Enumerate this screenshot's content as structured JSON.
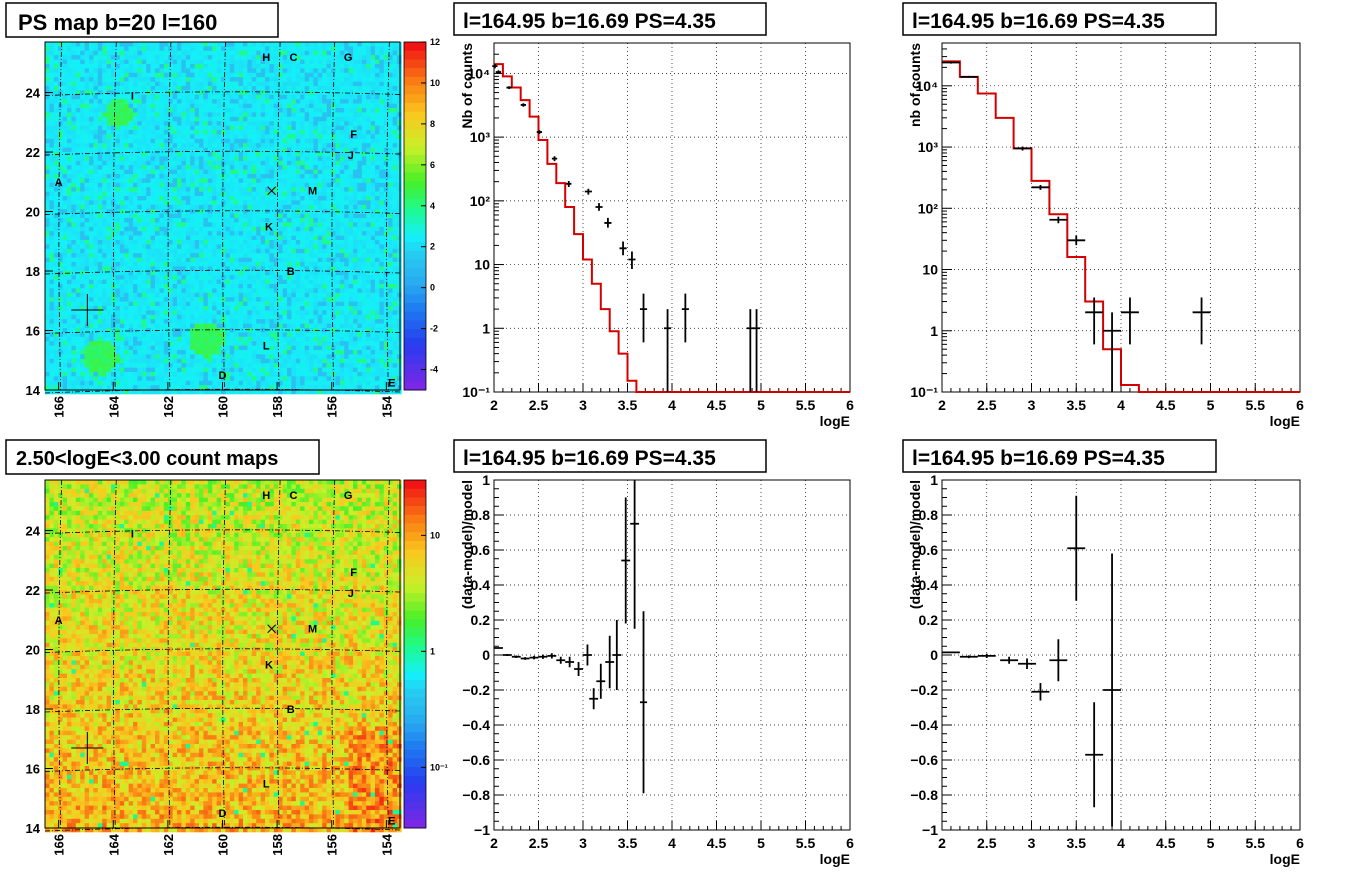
{
  "colors": {
    "hist": "#d40000",
    "points": "#000000",
    "grid": "#000000",
    "axis": "#000000"
  },
  "chart_data": [
    {
      "id": "ps-map",
      "type": "heatmap",
      "title": "PS map b=20 l=160",
      "x_ticks": [
        "166",
        "164",
        "162",
        "160",
        "158",
        "156",
        "154"
      ],
      "y_ticks": [
        "14",
        "16",
        "18",
        "20",
        "22",
        "24"
      ],
      "xlim": [
        166.5,
        153.5
      ],
      "ylim": [
        14,
        25.7
      ],
      "colorbar": {
        "scale": "linear",
        "ticks": [
          "12",
          "10",
          "8",
          "6",
          "4",
          "2",
          "0",
          "-2",
          "-4"
        ],
        "range": [
          -5,
          12
        ]
      },
      "sources": [
        {
          "label": "H",
          "l": 158.4,
          "b": 25.2
        },
        {
          "label": "C",
          "l": 157.4,
          "b": 25.2
        },
        {
          "label": "G",
          "l": 155.4,
          "b": 25.2
        },
        {
          "label": "I",
          "l": 163.3,
          "b": 23.9
        },
        {
          "label": "F",
          "l": 155.2,
          "b": 22.6
        },
        {
          "label": "J",
          "l": 155.3,
          "b": 21.9
        },
        {
          "label": "A",
          "l": 166.0,
          "b": 21.0
        },
        {
          "label": "M",
          "l": 156.7,
          "b": 20.7
        },
        {
          "label": "K",
          "l": 158.3,
          "b": 19.5
        },
        {
          "label": "B",
          "l": 157.5,
          "b": 18.0
        },
        {
          "label": "L",
          "l": 158.4,
          "b": 15.5
        },
        {
          "label": "D",
          "l": 160.0,
          "b": 14.5
        },
        {
          "label": "E",
          "l": 153.8,
          "b": 14.25
        }
      ],
      "markers": [
        {
          "symbol": "x",
          "l": 158.2,
          "b": 20.7
        },
        {
          "symbol": "+",
          "l": 164.95,
          "b": 16.69
        }
      ]
    },
    {
      "id": "count-map",
      "type": "heatmap",
      "title": "2.50<logE<3.00 count maps",
      "x_ticks": [
        "166",
        "164",
        "162",
        "160",
        "158",
        "156",
        "154"
      ],
      "y_ticks": [
        "14",
        "16",
        "18",
        "20",
        "22",
        "24"
      ],
      "xlim": [
        166.5,
        153.5
      ],
      "ylim": [
        14,
        25.7
      ],
      "colorbar": {
        "scale": "log",
        "ticks": [
          "10",
          "1",
          "10⁻¹"
        ],
        "range": [
          0.03,
          30
        ]
      },
      "sources_same_as": "ps-map"
    },
    {
      "id": "spectrum-1",
      "type": "line",
      "title": "l=164.95 b=16.69 PS=4.35",
      "xlabel": "logE",
      "ylabel": "Nb of counts",
      "y_scale": "log",
      "xlim": [
        2,
        6
      ],
      "ylim": [
        0.1,
        30000
      ],
      "x_ticks": [
        "2",
        "2.5",
        "3",
        "3.5",
        "4",
        "4.5",
        "5",
        "5.5",
        "6"
      ],
      "y_ticks": [
        {
          "v": 0.1,
          "label": "10⁻¹"
        },
        {
          "v": 1,
          "label": "1"
        },
        {
          "v": 10,
          "label": "10"
        },
        {
          "v": 100,
          "label": "10²"
        },
        {
          "v": 1000,
          "label": "10³"
        },
        {
          "v": 10000,
          "label": "10⁴"
        }
      ],
      "grid": true,
      "model_step": {
        "edges": [
          2.0,
          2.1,
          2.2,
          2.3,
          2.4,
          2.5,
          2.6,
          2.7,
          2.8,
          2.9,
          3.0,
          3.1,
          3.2,
          3.3,
          3.4,
          3.5,
          3.6,
          3.7,
          3.8,
          3.9,
          4.0,
          4.1,
          4.2,
          4.3
        ],
        "values": [
          14000,
          9000,
          6000,
          3800,
          2100,
          900,
          380,
          190,
          80,
          30,
          12,
          5,
          2,
          0.9,
          0.4,
          0.15,
          0.08,
          0.05,
          0.035,
          0.03,
          0.03,
          0.03,
          0.03
        ]
      },
      "data_points": [
        {
          "x": 2.01,
          "y": 13000,
          "dx": 0.03,
          "lo": 12000,
          "hi": 14000
        },
        {
          "x": 2.05,
          "y": 10500,
          "dx": 0.03,
          "lo": 9800,
          "hi": 11200
        },
        {
          "x": 2.17,
          "y": 6000,
          "dx": 0.03,
          "lo": 5700,
          "hi": 6300
        },
        {
          "x": 2.33,
          "y": 3200,
          "dx": 0.03,
          "lo": 3000,
          "hi": 3400
        },
        {
          "x": 2.51,
          "y": 1200,
          "dx": 0.03,
          "lo": 1120,
          "hi": 1280
        },
        {
          "x": 2.68,
          "y": 460,
          "dx": 0.03,
          "lo": 420,
          "hi": 500
        },
        {
          "x": 2.84,
          "y": 185,
          "dx": 0.03,
          "lo": 165,
          "hi": 205
        },
        {
          "x": 3.06,
          "y": 140,
          "dx": 0.04,
          "lo": 125,
          "hi": 155
        },
        {
          "x": 3.18,
          "y": 80,
          "dx": 0.04,
          "lo": 70,
          "hi": 92
        },
        {
          "x": 3.28,
          "y": 45,
          "dx": 0.04,
          "lo": 38,
          "hi": 54
        },
        {
          "x": 3.45,
          "y": 18,
          "dx": 0.04,
          "lo": 14,
          "hi": 23
        },
        {
          "x": 3.55,
          "y": 12,
          "dx": 0.04,
          "lo": 8.5,
          "hi": 16
        },
        {
          "x": 3.68,
          "y": 2,
          "dx": 0.04,
          "lo": 0.6,
          "hi": 3.5
        },
        {
          "x": 3.95,
          "y": 1,
          "dx": 0.04,
          "lo": 0.1,
          "hi": 2
        },
        {
          "x": 4.15,
          "y": 2,
          "dx": 0.04,
          "lo": 0.6,
          "hi": 3.5
        },
        {
          "x": 4.88,
          "y": 1,
          "dx": 0.04,
          "lo": 0.1,
          "hi": 2
        },
        {
          "x": 4.95,
          "y": 1,
          "dx": 0.04,
          "lo": 0.1,
          "hi": 2
        }
      ]
    },
    {
      "id": "spectrum-2",
      "type": "line",
      "title": "l=164.95 b=16.69 PS=4.35",
      "xlabel": "logE",
      "ylabel": "nb of counts",
      "y_scale": "log",
      "xlim": [
        2,
        6
      ],
      "ylim": [
        0.1,
        50000
      ],
      "x_ticks": [
        "2",
        "2.5",
        "3",
        "3.5",
        "4",
        "4.5",
        "5",
        "5.5",
        "6"
      ],
      "y_ticks": [
        {
          "v": 0.1,
          "label": "10⁻¹"
        },
        {
          "v": 1,
          "label": "1"
        },
        {
          "v": 10,
          "label": "10"
        },
        {
          "v": 100,
          "label": "10²"
        },
        {
          "v": 1000,
          "label": "10³"
        },
        {
          "v": 10000,
          "label": "10⁴"
        }
      ],
      "grid": true,
      "model_step": {
        "edges": [
          2.0,
          2.2,
          2.4,
          2.6,
          2.8,
          3.0,
          3.2,
          3.4,
          3.6,
          3.8,
          4.0,
          4.2,
          4.4,
          4.6
        ],
        "values": [
          25000,
          14000,
          7500,
          3000,
          950,
          280,
          80,
          16,
          3,
          0.5,
          0.13,
          0.1,
          0.1
        ]
      },
      "data_points": [
        {
          "x": 2.1,
          "y": 24000,
          "dx": 0.1,
          "lo": 23000,
          "hi": 25000
        },
        {
          "x": 2.3,
          "y": 14000,
          "dx": 0.1,
          "lo": 13500,
          "hi": 14500
        },
        {
          "x": 2.9,
          "y": 950,
          "dx": 0.1,
          "lo": 880,
          "hi": 1020
        },
        {
          "x": 3.1,
          "y": 220,
          "dx": 0.1,
          "lo": 200,
          "hi": 240
        },
        {
          "x": 3.3,
          "y": 65,
          "dx": 0.1,
          "lo": 57,
          "hi": 73
        },
        {
          "x": 3.5,
          "y": 30,
          "dx": 0.1,
          "lo": 25,
          "hi": 36
        },
        {
          "x": 3.7,
          "y": 2,
          "dx": 0.1,
          "lo": 0.6,
          "hi": 3.5
        },
        {
          "x": 3.9,
          "y": 1,
          "dx": 0.1,
          "lo": 0.1,
          "hi": 2
        },
        {
          "x": 4.1,
          "y": 2,
          "dx": 0.1,
          "lo": 0.6,
          "hi": 3.5
        },
        {
          "x": 4.9,
          "y": 2,
          "dx": 0.1,
          "lo": 0.6,
          "hi": 3.5
        }
      ]
    },
    {
      "id": "residual-1",
      "type": "scatter",
      "title": "l=164.95 b=16.69 PS=4.35",
      "xlabel": "logE",
      "ylabel": "(data-model)/model",
      "xlim": [
        2,
        6
      ],
      "ylim": [
        -1,
        1
      ],
      "x_ticks": [
        "2",
        "2.5",
        "3",
        "3.5",
        "4",
        "4.5",
        "5",
        "5.5",
        "6"
      ],
      "y_ticks": [
        "-1",
        "-0.8",
        "-0.6",
        "-0.4",
        "-0.2",
        "0",
        "0.2",
        "0.4",
        "0.6",
        "0.8",
        "1"
      ],
      "grid": true,
      "data_points": [
        {
          "x": 2.05,
          "y": 0.04,
          "dx": 0.05,
          "err": 0.005
        },
        {
          "x": 2.15,
          "y": 0.0,
          "dx": 0.05,
          "err": 0.006
        },
        {
          "x": 2.25,
          "y": -0.01,
          "dx": 0.05,
          "err": 0.007
        },
        {
          "x": 2.35,
          "y": -0.02,
          "dx": 0.05,
          "err": 0.008
        },
        {
          "x": 2.45,
          "y": -0.015,
          "dx": 0.05,
          "err": 0.01
        },
        {
          "x": 2.55,
          "y": -0.01,
          "dx": 0.05,
          "err": 0.012
        },
        {
          "x": 2.65,
          "y": -0.005,
          "dx": 0.05,
          "err": 0.015
        },
        {
          "x": 2.75,
          "y": -0.03,
          "dx": 0.05,
          "err": 0.02
        },
        {
          "x": 2.85,
          "y": -0.04,
          "dx": 0.05,
          "err": 0.03
        },
        {
          "x": 2.95,
          "y": -0.08,
          "dx": 0.05,
          "err": 0.04
        },
        {
          "x": 3.05,
          "y": 0.0,
          "dx": 0.05,
          "err": 0.06
        },
        {
          "x": 3.12,
          "y": -0.25,
          "dx": 0.05,
          "err": 0.06
        },
        {
          "x": 3.2,
          "y": -0.15,
          "dx": 0.05,
          "err": 0.1
        },
        {
          "x": 3.3,
          "y": -0.04,
          "dx": 0.05,
          "err": 0.15
        },
        {
          "x": 3.38,
          "y": 0.0,
          "dx": 0.05,
          "err": 0.2
        },
        {
          "x": 3.48,
          "y": 0.54,
          "dx": 0.05,
          "err": 0.36
        },
        {
          "x": 3.58,
          "y": 0.75,
          "dx": 0.05,
          "err": 0.6
        },
        {
          "x": 3.68,
          "y": -0.27,
          "dx": 0.04,
          "err": 0.52
        }
      ]
    },
    {
      "id": "residual-2",
      "type": "scatter",
      "title": "l=164.95 b=16.69 PS=4.35",
      "xlabel": "logE",
      "ylabel": "(data-model)/model",
      "xlim": [
        2,
        6
      ],
      "ylim": [
        -1,
        1
      ],
      "x_ticks": [
        "2",
        "2.5",
        "3",
        "3.5",
        "4",
        "4.5",
        "5",
        "5.5",
        "6"
      ],
      "y_ticks": [
        "-1",
        "-0.8",
        "-0.6",
        "-0.4",
        "-0.2",
        "0",
        "0.2",
        "0.4",
        "0.6",
        "0.8",
        "1"
      ],
      "grid": true,
      "data_points": [
        {
          "x": 2.1,
          "y": 0.015,
          "dx": 0.1,
          "err": 0.005
        },
        {
          "x": 2.3,
          "y": -0.01,
          "dx": 0.1,
          "err": 0.008
        },
        {
          "x": 2.5,
          "y": -0.005,
          "dx": 0.1,
          "err": 0.012
        },
        {
          "x": 2.75,
          "y": -0.03,
          "dx": 0.1,
          "err": 0.02
        },
        {
          "x": 2.95,
          "y": -0.05,
          "dx": 0.1,
          "err": 0.03
        },
        {
          "x": 3.1,
          "y": -0.21,
          "dx": 0.1,
          "err": 0.05
        },
        {
          "x": 3.3,
          "y": -0.03,
          "dx": 0.1,
          "err": 0.12
        },
        {
          "x": 3.5,
          "y": 0.61,
          "dx": 0.1,
          "err": 0.3
        },
        {
          "x": 3.7,
          "y": -0.57,
          "dx": 0.1,
          "err": 0.3
        },
        {
          "x": 3.9,
          "y": -0.2,
          "dx": 0.1,
          "err": 0.78
        }
      ]
    }
  ]
}
